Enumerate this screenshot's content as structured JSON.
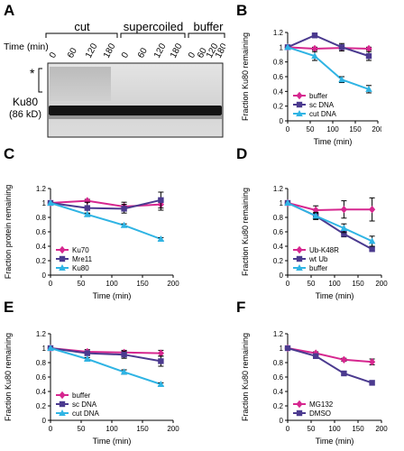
{
  "panels": {
    "A": {
      "letter": "A",
      "time_label": "Time (min)",
      "groups": [
        "cut",
        "supercoiled",
        "buffer"
      ],
      "timepoints": [
        "0",
        "60",
        "120",
        "180"
      ],
      "band_label_line1": "Ku80",
      "band_label_line2": "(86 kD)",
      "asterisk": "*"
    }
  },
  "chart_data": [
    {
      "id": "B",
      "letter": "B",
      "type": "line",
      "title": "",
      "xlabel": "Time (min)",
      "ylabel": "Fraction Ku80 remaining",
      "xlim": [
        0,
        200
      ],
      "ylim": [
        0,
        1.2
      ],
      "xticks": [
        0,
        50,
        100,
        150,
        200
      ],
      "yticks": [
        0,
        0.2,
        0.4,
        0.6,
        0.8,
        1,
        1.2
      ],
      "ytick_labels": [
        "0",
        "0.2",
        "0.4",
        "0.6",
        "0.8",
        "1",
        "1.2"
      ],
      "legend_position": "bottom-left",
      "series": [
        {
          "name": "buffer",
          "color": "#d6278f",
          "marker": "diamond",
          "x": [
            0,
            60,
            120,
            180
          ],
          "y": [
            1.0,
            0.98,
            0.99,
            0.98
          ],
          "err": [
            0,
            0.02,
            0.02,
            0.02
          ]
        },
        {
          "name": "sc DNA",
          "color": "#4b3a8f",
          "marker": "square",
          "x": [
            0,
            60,
            120,
            180
          ],
          "y": [
            1.0,
            1.16,
            1.0,
            0.88
          ],
          "err": [
            0,
            0.03,
            0.05,
            0.06
          ]
        },
        {
          "name": "cut DNA",
          "color": "#2fb4e4",
          "marker": "triangle",
          "x": [
            0,
            60,
            120,
            180
          ],
          "y": [
            1.0,
            0.88,
            0.56,
            0.43
          ],
          "err": [
            0,
            0.06,
            0.04,
            0.05
          ]
        }
      ]
    },
    {
      "id": "C",
      "letter": "C",
      "type": "line",
      "title": "",
      "xlabel": "Time (min)",
      "ylabel": "Fraction protein remaining",
      "xlim": [
        0,
        200
      ],
      "ylim": [
        0,
        1.2
      ],
      "xticks": [
        0,
        50,
        100,
        150,
        200
      ],
      "yticks": [
        0,
        0.2,
        0.4,
        0.6,
        0.8,
        1,
        1.2
      ],
      "ytick_labels": [
        "0",
        "0.2",
        "0.4",
        "0.6",
        "0.8",
        "1",
        "1.2"
      ],
      "legend_position": "bottom-left",
      "series": [
        {
          "name": "Ku70",
          "color": "#d6278f",
          "marker": "diamond",
          "x": [
            0,
            60,
            120,
            180
          ],
          "y": [
            1.0,
            1.03,
            0.95,
            0.98
          ],
          "err": [
            0,
            0.02,
            0.06,
            0.08
          ]
        },
        {
          "name": "Mre11",
          "color": "#4b3a8f",
          "marker": "square",
          "x": [
            0,
            60,
            120,
            180
          ],
          "y": [
            1.0,
            0.93,
            0.92,
            1.04
          ],
          "err": [
            0,
            0.08,
            0.06,
            0.11
          ]
        },
        {
          "name": "Ku80",
          "color": "#2fb4e4",
          "marker": "triangle",
          "x": [
            0,
            60,
            120,
            180
          ],
          "y": [
            1.0,
            0.84,
            0.69,
            0.5
          ],
          "err": [
            0,
            0.02,
            0.02,
            0.02
          ]
        }
      ]
    },
    {
      "id": "D",
      "letter": "D",
      "type": "line",
      "title": "",
      "xlabel": "Time (min)",
      "ylabel": "Fraction Ku80 remaining",
      "xlim": [
        0,
        200
      ],
      "ylim": [
        0,
        1.2
      ],
      "xticks": [
        0,
        50,
        100,
        150,
        200
      ],
      "yticks": [
        0,
        0.2,
        0.4,
        0.6,
        0.8,
        1,
        1.2
      ],
      "ytick_labels": [
        "0",
        "0.2",
        "0.4",
        "0.6",
        "0.8",
        "1",
        "1.2"
      ],
      "legend_position": "bottom-left",
      "series": [
        {
          "name": "Ub-K48R",
          "color": "#d6278f",
          "marker": "diamond",
          "x": [
            0,
            60,
            120,
            180
          ],
          "y": [
            1.0,
            0.9,
            0.91,
            0.91
          ],
          "err": [
            0,
            0.06,
            0.12,
            0.16
          ]
        },
        {
          "name": "wt Ub",
          "color": "#4b3a8f",
          "marker": "square",
          "x": [
            0,
            60,
            120,
            180
          ],
          "y": [
            1.0,
            0.82,
            0.57,
            0.36
          ],
          "err": [
            0,
            0.05,
            0.04,
            0.03
          ]
        },
        {
          "name": "buffer",
          "color": "#2fb4e4",
          "marker": "triangle",
          "x": [
            0,
            60,
            120,
            180
          ],
          "y": [
            1.0,
            0.82,
            0.65,
            0.47
          ],
          "err": [
            0,
            0.04,
            0.06,
            0.07
          ]
        }
      ]
    },
    {
      "id": "E",
      "letter": "E",
      "type": "line",
      "title": "",
      "xlabel": "Time (min)",
      "ylabel": "Fraction Ku80 remaining",
      "xlim": [
        0,
        200
      ],
      "ylim": [
        0,
        1.2
      ],
      "xticks": [
        0,
        50,
        100,
        150,
        200
      ],
      "yticks": [
        0,
        0.2,
        0.4,
        0.6,
        0.8,
        1,
        1.2
      ],
      "ytick_labels": [
        "0",
        "0.2",
        "0.4",
        "0.6",
        "0.8",
        "1",
        "1.2"
      ],
      "legend_position": "bottom-left",
      "series": [
        {
          "name": "buffer",
          "color": "#d6278f",
          "marker": "diamond",
          "x": [
            0,
            60,
            120,
            180
          ],
          "y": [
            1.0,
            0.95,
            0.94,
            0.93
          ],
          "err": [
            0,
            0.03,
            0.03,
            0.04
          ]
        },
        {
          "name": "sc DNA",
          "color": "#4b3a8f",
          "marker": "square",
          "x": [
            0,
            60,
            120,
            180
          ],
          "y": [
            1.0,
            0.93,
            0.91,
            0.82
          ],
          "err": [
            0,
            0.03,
            0.05,
            0.07
          ]
        },
        {
          "name": "cut DNA",
          "color": "#2fb4e4",
          "marker": "triangle",
          "x": [
            0,
            60,
            120,
            180
          ],
          "y": [
            1.0,
            0.85,
            0.67,
            0.5
          ],
          "err": [
            0,
            0.02,
            0.03,
            0.02
          ]
        }
      ]
    },
    {
      "id": "F",
      "letter": "F",
      "type": "line",
      "title": "",
      "xlabel": "Time (min)",
      "ylabel": "Fraction Ku80 remaining",
      "xlim": [
        0,
        200
      ],
      "ylim": [
        0,
        1.2
      ],
      "xticks": [
        0,
        50,
        100,
        150,
        200
      ],
      "yticks": [
        0,
        0.2,
        0.4,
        0.6,
        0.8,
        1,
        1.2
      ],
      "ytick_labels": [
        "0",
        "0.2",
        "0.4",
        "0.6",
        "0.8",
        "1",
        "1.2"
      ],
      "legend_position": "bottom-left",
      "series": [
        {
          "name": "MG132",
          "color": "#d6278f",
          "marker": "diamond",
          "x": [
            0,
            60,
            120,
            180
          ],
          "y": [
            1.0,
            0.93,
            0.84,
            0.81
          ],
          "err": [
            0,
            0.02,
            0.02,
            0.04
          ]
        },
        {
          "name": "DMSO",
          "color": "#4b3a8f",
          "marker": "square",
          "x": [
            0,
            60,
            120,
            180
          ],
          "y": [
            1.0,
            0.89,
            0.65,
            0.52
          ],
          "err": [
            0,
            0.02,
            0.02,
            0.03
          ]
        }
      ]
    }
  ]
}
